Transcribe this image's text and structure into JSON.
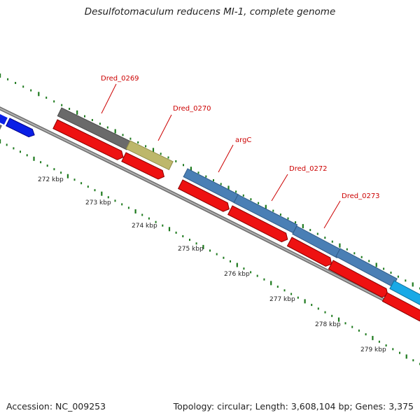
{
  "title": "Desulfotomaculum reducens MI-1, complete genome",
  "accession": "Accession: NC_009253",
  "summary": "Topology: circular; Length: 3,608,104 bp; Genes: 3,375",
  "colors": {
    "backbone": "#8a8a8a",
    "tick": "#1e7a1e",
    "gene_label": "#cc0000",
    "feature_red": "#ee1111",
    "feature_blue": "#0a1fe6",
    "feature_steelblue": "#4a7fb5",
    "feature_gray": "#6a6a6a",
    "feature_khaki": "#bdb76b",
    "feature_cyan": "#19a9e6"
  },
  "tick_labels": [
    "272 kbp",
    "273 kbp",
    "274 kbp",
    "275 kbp",
    "276 kbp",
    "277 kbp",
    "278 kbp",
    "279 kbp"
  ],
  "gene_labels": [
    "Dred_0269",
    "Dred_0270",
    "argC",
    "Dred_0272",
    "Dred_0273"
  ]
}
